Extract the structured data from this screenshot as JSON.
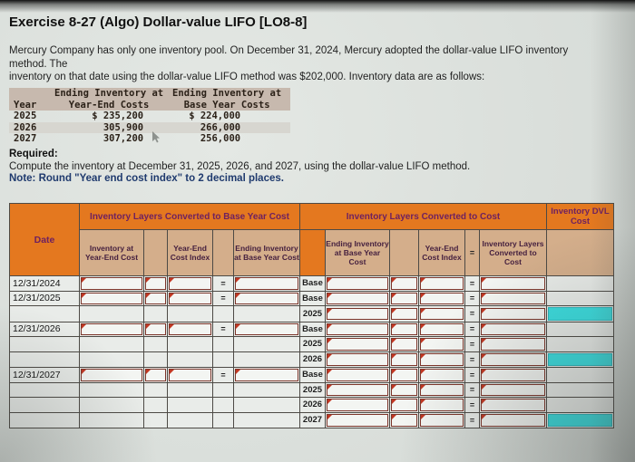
{
  "page": {
    "title": "Exercise 8-27 (Algo) Dollar-value LIFO [LO8-8]",
    "intro_line1": "Mercury Company has only one inventory pool. On December 31, 2024, Mercury adopted the dollar-value LIFO inventory method. The",
    "intro_line2": "inventory on that date using the dollar-value LIFO method was $202,000. Inventory data are as follows:",
    "required_label": "Required:",
    "required_text": "Compute the inventory at December 31, 2025, 2026, and 2027, using the dollar-value LIFO method.",
    "note_text": "Note: Round \"Year end cost index\" to 2 decimal places."
  },
  "inventory_data": {
    "header_line1_col2": "Ending Inventory at",
    "header_line1_col3": "Ending Inventory at",
    "header_year": "Year",
    "header_col2": "Year-End Costs",
    "header_col3": "Base Year Costs",
    "rows": [
      {
        "year": "2025",
        "year_end_costs": "$ 235,200",
        "base_year_costs": "$ 224,000"
      },
      {
        "year": "2026",
        "year_end_costs": "305,900",
        "base_year_costs": "266,000"
      },
      {
        "year": "2027",
        "year_end_costs": "307,200",
        "base_year_costs": "256,000"
      }
    ]
  },
  "worksheet": {
    "group_left": "Inventory Layers Converted to Base Year Cost",
    "group_right": "Inventory Layers Converted to Cost",
    "group_dvl": "Inventory DVL Cost",
    "equals": "=",
    "headers": {
      "date": "Date",
      "inventory_at_year_end_cost": "Inventory at Year-End Cost",
      "year_end_cost_index": "Year-End Cost Index",
      "ending_inventory_at_base_year_cost": "Ending Inventory at Base Year Cost",
      "inventory_layers_converted_to_cost": "Inventory Layers Converted to Cost"
    },
    "rows": [
      {
        "date": "12/31/2024",
        "label": "Base",
        "dvl_highlight": false
      },
      {
        "date": "12/31/2025",
        "label": "Base",
        "dvl_highlight": false
      },
      {
        "date": "",
        "label": "2025",
        "dvl_highlight": true
      },
      {
        "date": "12/31/2026",
        "label": "Base",
        "dvl_highlight": false
      },
      {
        "date": "",
        "label": "2025",
        "dvl_highlight": false
      },
      {
        "date": "",
        "label": "2026",
        "dvl_highlight": true
      },
      {
        "date": "12/31/2027",
        "label": "Base",
        "dvl_highlight": false
      },
      {
        "date": "",
        "label": "2025",
        "dvl_highlight": false
      },
      {
        "date": "",
        "label": "2026",
        "dvl_highlight": false
      },
      {
        "date": "",
        "label": "2027",
        "dvl_highlight": true
      }
    ],
    "colors": {
      "header_orange": "#e4781f",
      "subheader_tan": "#d4ae8b",
      "header_text_purple": "#6e2160",
      "input_border": "#7c352a",
      "marker_red": "#c23722",
      "highlight_cyan": "#3bdfe1",
      "body_cell": "#e9ece9"
    }
  }
}
